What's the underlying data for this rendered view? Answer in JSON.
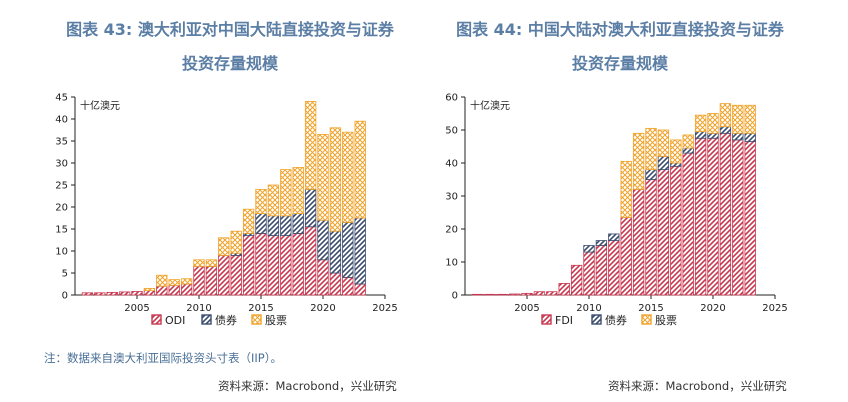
{
  "left": {
    "title_line1": "图表 43: 澳大利亚对中国大陆直接投资与证券",
    "title_line2": "投资存量规模",
    "unit_label": "十亿澳元",
    "source": "资料来源：Macrobond，兴业研究"
  },
  "right": {
    "title_line1": "图表 44: 中国大陆对澳大利亚直接投资与证券",
    "title_line2": "投资存量规模",
    "unit_label": "十亿澳元",
    "source": "资料来源：Macrobond，兴业研究"
  },
  "footnote": "注：数据来自澳大利亚国际投资头寸表（IIP）。",
  "colors": {
    "red": "#c8374f",
    "navy": "#3b4c6e",
    "orange": "#f0a32b",
    "title": "#5b7ea5"
  },
  "chart_data": [
    {
      "type": "bar",
      "stacked": true,
      "title": "图表 43: 澳大利亚对中国大陆直接投资与证券投资存量规模",
      "unit": "十亿澳元",
      "x": [
        2001,
        2002,
        2003,
        2004,
        2005,
        2006,
        2007,
        2008,
        2009,
        2010,
        2011,
        2012,
        2013,
        2014,
        2015,
        2016,
        2017,
        2018,
        2019,
        2020,
        2021,
        2022,
        2023
      ],
      "xlim": [
        2000,
        2025
      ],
      "xticks": [
        2005,
        2010,
        2015,
        2020,
        2025
      ],
      "ylim": [
        0,
        45
      ],
      "yticks": [
        0,
        5,
        10,
        15,
        20,
        25,
        30,
        35,
        40,
        45
      ],
      "series": [
        {
          "name": "ODI",
          "color": "#c8374f",
          "values": [
            0.5,
            0.5,
            0.6,
            0.7,
            0.8,
            1.0,
            2.0,
            2.2,
            2.5,
            6.5,
            6.5,
            9.0,
            9.0,
            13.5,
            14.0,
            13.5,
            13.5,
            14.0,
            15.5,
            8.0,
            5.0,
            4.0,
            2.5
          ]
        },
        {
          "name": "债券",
          "color": "#3b4c6e",
          "values": [
            0,
            0,
            0,
            0,
            0,
            0,
            0,
            0,
            0,
            0,
            0,
            0,
            0.5,
            0.5,
            4.5,
            4.5,
            4.5,
            4.5,
            8.5,
            9.0,
            9.5,
            12.5,
            15.0
          ]
        },
        {
          "name": "股票",
          "color": "#f0a32b",
          "values": [
            0,
            0,
            0,
            0,
            0,
            0.5,
            2.5,
            1.3,
            1.2,
            1.5,
            1.5,
            4.0,
            5.0,
            5.5,
            5.5,
            7.0,
            10.5,
            10.5,
            20.0,
            19.5,
            23.5,
            20.5,
            22.0
          ]
        }
      ]
    },
    {
      "type": "bar",
      "stacked": true,
      "title": "图表 44: 中国大陆对澳大利亚直接投资与证券投资存量规模",
      "unit": "十亿澳元",
      "x": [
        2001,
        2002,
        2003,
        2004,
        2005,
        2006,
        2007,
        2008,
        2009,
        2010,
        2011,
        2012,
        2013,
        2014,
        2015,
        2016,
        2017,
        2018,
        2019,
        2020,
        2021,
        2022,
        2023
      ],
      "xlim": [
        2000,
        2025
      ],
      "xticks": [
        2005,
        2010,
        2015,
        2020,
        2025
      ],
      "ylim": [
        0,
        60
      ],
      "yticks": [
        0,
        10,
        20,
        30,
        40,
        50,
        60
      ],
      "series": [
        {
          "name": "FDI",
          "color": "#c8374f",
          "values": [
            0.2,
            0.2,
            0.2,
            0.3,
            0.5,
            1.0,
            1.0,
            3.5,
            9.0,
            13.0,
            15.0,
            16.5,
            23.5,
            32.0,
            35.0,
            38.0,
            39.0,
            43.0,
            47.5,
            47.5,
            49.0,
            47.0,
            46.5
          ]
        },
        {
          "name": "债券",
          "color": "#3b4c6e",
          "values": [
            0,
            0,
            0,
            0,
            0,
            0,
            0,
            0,
            0,
            2.0,
            1.5,
            2.0,
            0,
            0,
            3.0,
            4.0,
            1.0,
            1.5,
            2.0,
            1.5,
            2.0,
            2.0,
            2.5
          ]
        },
        {
          "name": "股票",
          "color": "#f0a32b",
          "values": [
            0,
            0,
            0,
            0,
            0,
            0,
            0,
            0,
            0,
            0,
            0,
            0,
            17.0,
            17.0,
            12.5,
            8.0,
            7.0,
            4.0,
            5.0,
            6.0,
            7.0,
            8.5,
            8.5
          ]
        }
      ]
    }
  ]
}
